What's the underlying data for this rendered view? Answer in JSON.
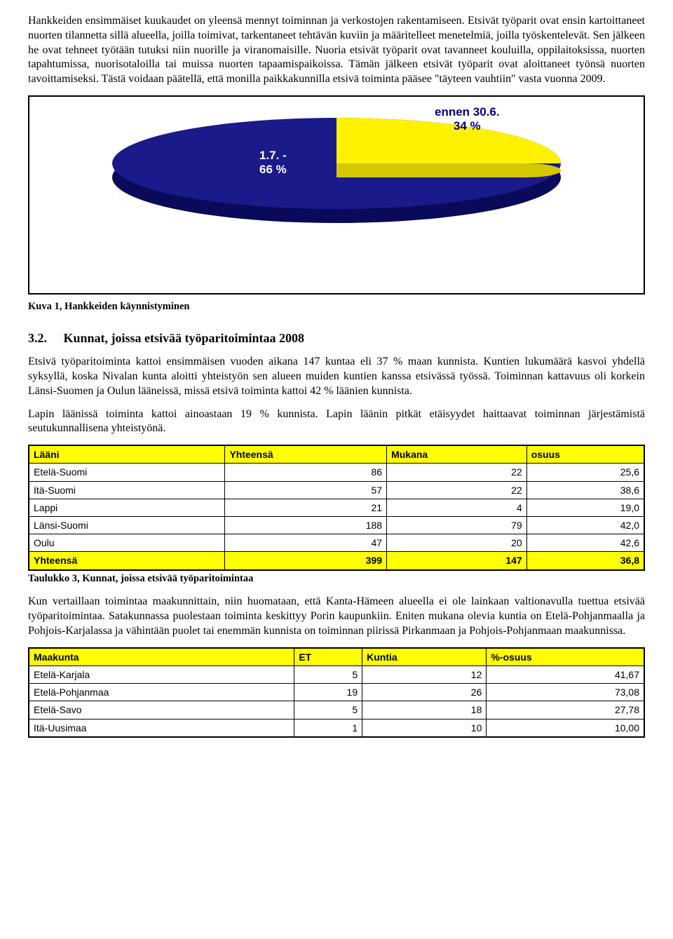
{
  "para1": "Hankkeiden ensimmäiset kuukaudet on yleensä mennyt toiminnan ja verkostojen rakentamiseen. Etsivät työparit ovat ensin kartoittaneet nuorten tilannetta sillä alueella, joilla toimivat, tarkentaneet tehtävän kuviin ja määritelleet menetelmiä, joilla työskentelevät. Sen jälkeen he ovat tehneet työtään tutuksi niin nuorille ja viranomaisille. Nuoria etsivät työparit ovat tavanneet kouluilla, oppilaitoksissa, nuorten tapahtumissa, nuorisotaloilla tai muissa nuorten tapaamispaikoissa. Tämän jälkeen etsivät työparit ovat aloittaneet työnsä nuorten tavoittamiseksi. Tästä voidaan päätellä, että monilla paikkakunnilla etsivä toiminta pääsee \"täyteen vauhtiin\" vasta vuonna 2009.",
  "chart": {
    "type": "pie",
    "background_color": "#ffffff",
    "border_color": "#000000",
    "slices": [
      {
        "label_line1": "1.7. -",
        "label_line2": "66 %",
        "value": 66,
        "color": "#1a1a8a",
        "side_color": "#0a0a5a",
        "label_color": "#ffffff"
      },
      {
        "label_line1": "ennen 30.6.",
        "label_line2": "34 %",
        "value": 34,
        "color": "#fff200",
        "side_color": "#d4c800",
        "label_color": "#000080"
      }
    ],
    "label_fontsize": 17,
    "label_fontweight": "bold"
  },
  "caption1": "Kuva 1, Hankkeiden käynnistyminen",
  "section": {
    "num": "3.2.",
    "title": "Kunnat, joissa etsivää työparitoimintaa 2008"
  },
  "para2": "Etsivä työparitoiminta kattoi ensimmäisen vuoden aikana 147 kuntaa eli 37 % maan kunnista. Kuntien lukumäärä kasvoi yhdellä syksyllä, koska Nivalan kunta aloitti yhteistyön sen alueen muiden kuntien kanssa etsivässä työssä. Toiminnan kattavuus oli korkein Länsi-Suomen ja Oulun lääneissä, missä etsivä toiminta kattoi 42 % läänien kunnista.",
  "para3": "Lapin läänissä toiminta kattoi ainoastaan 19 % kunnista. Lapin läänin pitkät etäisyydet haittaavat toiminnan järjestämistä seutukunnallisena yhteistyönä.",
  "table1": {
    "headers": [
      "Lääni",
      "Yhteensä",
      "Mukana",
      "osuus"
    ],
    "rows": [
      [
        "Etelä-Suomi",
        "86",
        "22",
        "25,6"
      ],
      [
        "Itä-Suomi",
        "57",
        "22",
        "38,6"
      ],
      [
        "Lappi",
        "21",
        "4",
        "19,0"
      ],
      [
        "Länsi-Suomi",
        "188",
        "79",
        "42,0"
      ],
      [
        "Oulu",
        "47",
        "20",
        "42,6"
      ]
    ],
    "total": [
      "Yhteensä",
      "399",
      "147",
      "36,8"
    ],
    "header_bg": "#ffff00",
    "col_align": [
      "left",
      "right",
      "right",
      "right"
    ]
  },
  "caption2": "Taulukko 3, Kunnat, joissa etsivää työparitoimintaa",
  "para4": "Kun vertaillaan toimintaa maakunnittain, niin huomataan, että Kanta-Hämeen alueella ei ole lainkaan valtionavulla tuettua etsivää työparitoimintaa. Satakunnassa puolestaan toiminta keskittyy Porin kaupunkiin. Eniten mukana olevia kuntia on Etelä-Pohjanmaalla ja Pohjois-Karjalassa ja vähintään puolet tai enemmän kunnista on toiminnan piirissä Pirkanmaan ja Pohjois-Pohjanmaan maakunnissa.",
  "table2": {
    "headers": [
      "Maakunta",
      "ET",
      "Kuntia",
      "%-osuus"
    ],
    "rows": [
      [
        "Etelä-Karjala",
        "5",
        "12",
        "41,67"
      ],
      [
        "Etelä-Pohjanmaa",
        "19",
        "26",
        "73,08"
      ],
      [
        "Etelä-Savo",
        "5",
        "18",
        "27,78"
      ],
      [
        "Itä-Uusimaa",
        "1",
        "10",
        "10,00"
      ]
    ],
    "header_bg": "#ffff00",
    "col_align": [
      "left",
      "right",
      "right",
      "right"
    ]
  }
}
